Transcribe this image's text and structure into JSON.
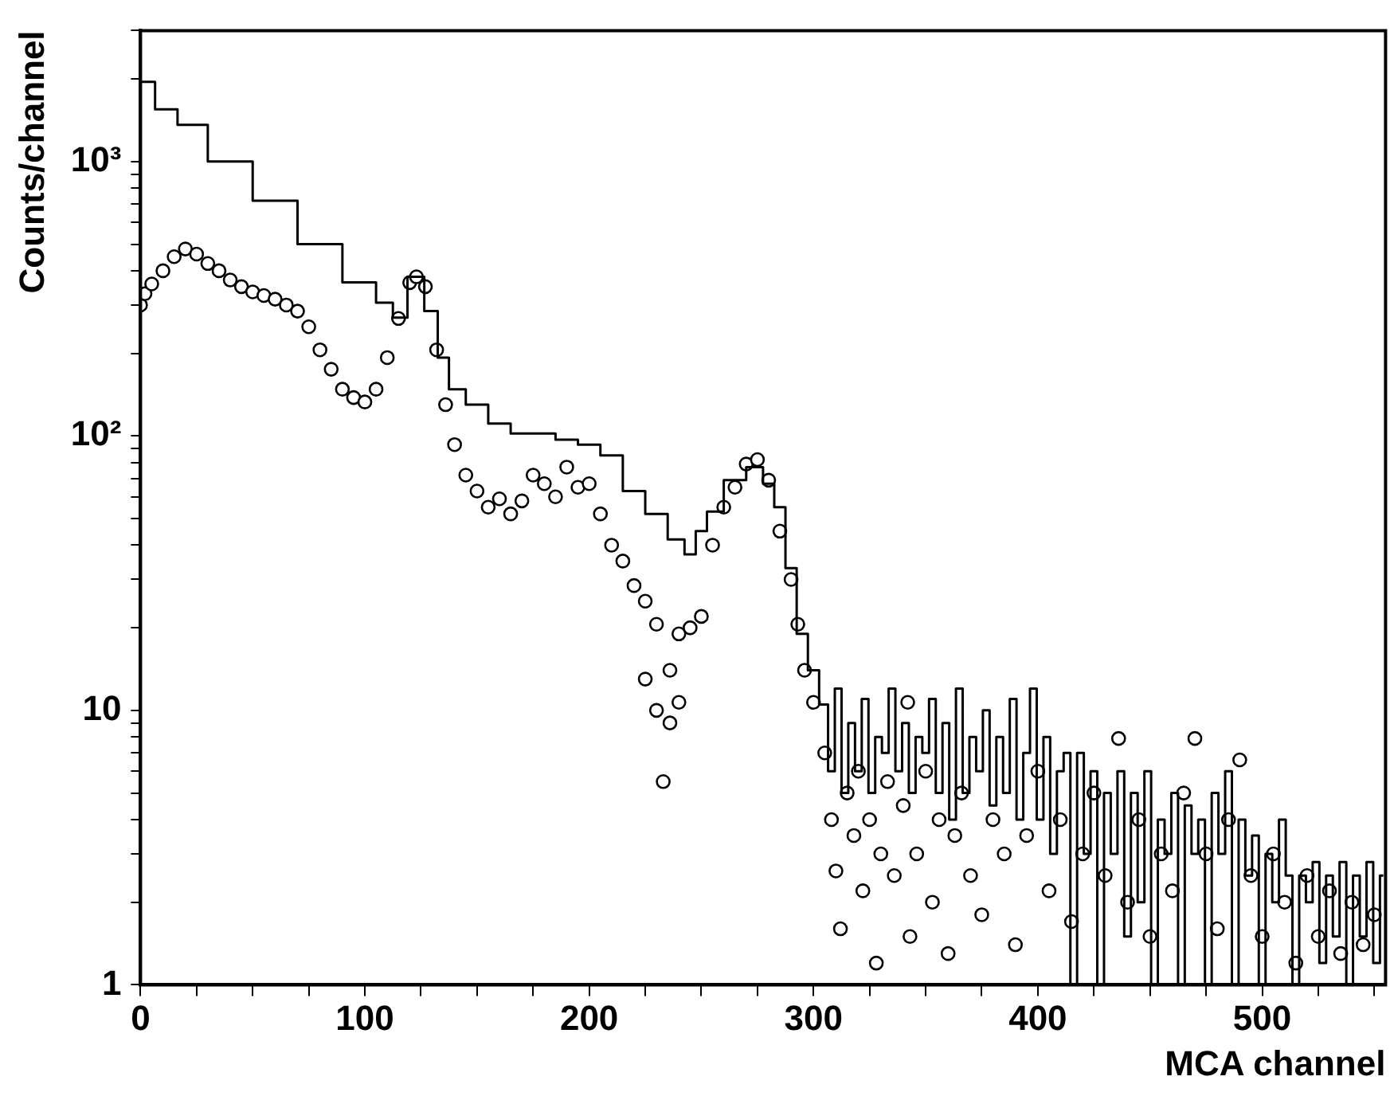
{
  "chart_data": {
    "type": "step",
    "xlabel": "MCA channel",
    "ylabel": "Counts/channel",
    "log": "y",
    "xlim": [
      0,
      555
    ],
    "xticks": [
      0,
      {
        "value": 25,
        "label": null
      },
      {
        "value": 50,
        "label": null
      },
      {
        "value": 75,
        "label": null
      },
      100,
      {
        "value": 125,
        "label": null
      },
      {
        "value": 150,
        "label": null
      },
      {
        "value": 175,
        "label": null
      },
      200,
      {
        "value": 225,
        "label": null
      },
      {
        "value": 250,
        "label": null
      },
      {
        "value": 275,
        "label": null
      },
      300,
      {
        "value": 325,
        "label": null
      },
      {
        "value": 350,
        "label": null
      },
      {
        "value": 375,
        "label": null
      },
      400,
      {
        "value": 425,
        "label": null
      },
      {
        "value": 450,
        "label": null
      },
      {
        "value": 475,
        "label": null
      },
      500,
      {
        "value": 525,
        "label": null
      },
      {
        "value": 550,
        "label": null
      }
    ],
    "ylim": [
      1,
      3000
    ],
    "yticks": [
      1,
      {
        "value": 2,
        "label": null
      },
      {
        "value": 3,
        "label": null
      },
      {
        "value": 4,
        "label": null
      },
      {
        "value": 5,
        "label": null
      },
      {
        "value": 6,
        "label": null
      },
      {
        "value": 7,
        "label": null
      },
      {
        "value": 8,
        "label": null
      },
      {
        "value": 9,
        "label": null
      },
      10,
      {
        "value": 20,
        "label": null
      },
      {
        "value": 30,
        "label": null
      },
      {
        "value": 40,
        "label": null
      },
      {
        "value": 50,
        "label": null
      },
      {
        "value": 60,
        "label": null
      },
      {
        "value": 70,
        "label": null
      },
      {
        "value": 80,
        "label": null
      },
      {
        "value": 90,
        "label": null
      },
      {
        "value": 100,
        "label": "10²"
      },
      {
        "value": 200,
        "label": null
      },
      {
        "value": 300,
        "label": null
      },
      {
        "value": 400,
        "label": null
      },
      {
        "value": 500,
        "label": null
      },
      {
        "value": 600,
        "label": null
      },
      {
        "value": 700,
        "label": null
      },
      {
        "value": 800,
        "label": null
      },
      {
        "value": 900,
        "label": null
      },
      {
        "value": 1000,
        "label": "10³"
      },
      {
        "value": 2000,
        "label": null
      },
      {
        "value": 3000,
        "label": null
      }
    ],
    "series": [
      {
        "type": "step",
        "color": "#000000",
        "marker": "none",
        "x": [
          0,
          13,
          20,
          40,
          60,
          80,
          100,
          110,
          115,
          123,
          130,
          135,
          140,
          150,
          160,
          170,
          180,
          190,
          200,
          210,
          220,
          230,
          240,
          245,
          250,
          255,
          265,
          275,
          280,
          285,
          290,
          295,
          300,
          305,
          308,
          311,
          314,
          317,
          320,
          323,
          326,
          329,
          332,
          335,
          338,
          341,
          344,
          347,
          350,
          353,
          356,
          359,
          362,
          365,
          368,
          371,
          374,
          377,
          380,
          383,
          386,
          389,
          392,
          395,
          398,
          401,
          404,
          407,
          410,
          413,
          416,
          419,
          422,
          425,
          428,
          431,
          434,
          437,
          440,
          443,
          446,
          449,
          452,
          455,
          458,
          461,
          464,
          467,
          470,
          473,
          476,
          479,
          482,
          485,
          488,
          491,
          494,
          497,
          500,
          503,
          506,
          509,
          512,
          515,
          518,
          521,
          524,
          527,
          530,
          533,
          536,
          539,
          542,
          545,
          548,
          551,
          554
        ],
        "values": [
          1950,
          1550,
          1360,
          1000,
          720,
          500,
          363,
          306,
          270,
          380,
          285,
          193,
          148,
          130,
          111,
          102,
          102,
          97,
          93,
          85,
          63,
          52,
          42,
          37,
          45,
          53,
          69,
          77,
          67,
          55,
          33,
          19,
          14,
          10.5,
          6,
          12,
          5,
          9,
          6,
          11,
          5,
          8,
          7,
          12,
          6,
          9,
          5,
          8,
          7,
          11,
          5,
          9,
          4,
          12,
          5,
          8,
          6,
          10,
          4.5,
          8,
          5,
          11,
          4,
          7,
          12,
          4,
          8,
          3,
          6,
          7,
          1,
          7,
          3,
          6,
          1,
          5,
          3,
          6,
          1.5,
          5,
          2,
          6,
          1,
          4,
          3,
          5,
          1,
          4.5,
          3,
          4,
          1,
          5,
          3,
          6,
          1,
          4,
          2.5,
          3.5,
          1,
          3,
          2,
          4,
          2.5,
          1,
          2.5,
          2,
          2.8,
          1.2,
          2.5,
          1.5,
          2.8,
          1,
          2.5,
          1.5,
          2.8,
          1.2,
          2.5
        ]
      },
      {
        "type": "scatter",
        "color": "#000000",
        "marker": "circle",
        "x": [
          0,
          2,
          5,
          10,
          15,
          20,
          25,
          30,
          35,
          40,
          45,
          50,
          55,
          60,
          65,
          70,
          75,
          80,
          85,
          90,
          95,
          100,
          105,
          110,
          115,
          120,
          123,
          127,
          132,
          136,
          140,
          145,
          150,
          155,
          160,
          165,
          170,
          175,
          180,
          185,
          190,
          195,
          200,
          205,
          210,
          215,
          220,
          225,
          225,
          230,
          230,
          233,
          236,
          236,
          240,
          240,
          245,
          250,
          255,
          260,
          265,
          270,
          275,
          280,
          285,
          290,
          293,
          296,
          300,
          305,
          308,
          310,
          312,
          315,
          318,
          320,
          322,
          325,
          328,
          330,
          333,
          336,
          340,
          342,
          343,
          346,
          350,
          353,
          356,
          360,
          363,
          366,
          370,
          375,
          380,
          385,
          390,
          395,
          400,
          405,
          410,
          415,
          420,
          425,
          430,
          436,
          440,
          445,
          450,
          455,
          460,
          465,
          470,
          475,
          480,
          485,
          490,
          495,
          500,
          505,
          510,
          515,
          520,
          525,
          530,
          535,
          540,
          545,
          550
        ],
        "values": [
          300,
          330,
          358,
          400,
          450,
          480,
          460,
          425,
          400,
          370,
          350,
          335,
          325,
          315,
          300,
          285,
          250,
          206,
          175,
          148,
          138,
          133,
          148,
          193,
          268,
          362,
          380,
          350,
          206,
          130,
          93,
          72,
          63,
          55,
          59,
          52,
          58,
          72,
          67,
          60,
          77,
          65,
          67,
          52,
          40,
          35,
          28.5,
          25,
          13,
          20.6,
          10,
          5.5,
          14,
          9,
          10.7,
          19,
          20,
          22,
          40,
          55,
          65,
          79,
          82,
          69,
          45,
          30,
          20.6,
          14,
          10.7,
          7,
          4,
          2.6,
          1.6,
          5,
          3.5,
          6,
          2.2,
          4,
          1.2,
          3,
          5.5,
          2.5,
          4.5,
          10.7,
          1.5,
          3,
          6,
          2,
          4,
          1.3,
          3.5,
          5,
          2.5,
          1.8,
          4,
          3,
          1.4,
          3.5,
          6,
          2.2,
          4,
          1.7,
          3,
          5,
          2.5,
          7.9,
          2,
          4,
          1.5,
          3,
          2.2,
          5,
          7.9,
          3,
          1.6,
          4,
          6.6,
          2.5,
          1.5,
          3,
          2,
          1.2,
          2.5,
          1.5,
          2.2,
          1.3,
          2,
          1.4,
          1.8
        ]
      }
    ]
  }
}
